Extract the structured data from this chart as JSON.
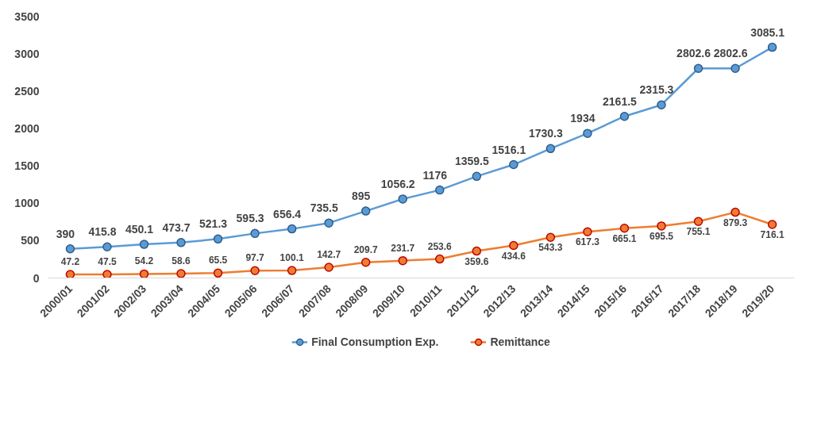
{
  "chart_data": {
    "type": "line",
    "categories": [
      "2000/01",
      "2001/02",
      "2002/03",
      "2003/04",
      "2004/05",
      "2005/06",
      "2006/07",
      "2007/08",
      "2008/09",
      "2009/10",
      "2010/11",
      "2011/12",
      "2012/13",
      "2013/14",
      "2014/15",
      "2015/16",
      "2016/17",
      "2017/18",
      "2018/19",
      "2019/20"
    ],
    "series": [
      {
        "name": "Final Consumption Exp.",
        "color": "#5b9bd5",
        "values": [
          390,
          415.8,
          450.1,
          473.7,
          521.3,
          595.3,
          656.4,
          735.5,
          895,
          1056.2,
          1176,
          1359.5,
          1516.1,
          1730.3,
          1934,
          2161.5,
          2315.3,
          2802.6,
          2802.6,
          3085.1
        ]
      },
      {
        "name": "Remittance",
        "color": "#ed7d31",
        "values": [
          47.2,
          47.5,
          54.2,
          58.6,
          65.5,
          97.7,
          100.1,
          142.7,
          209.7,
          231.7,
          253.6,
          359.6,
          434.6,
          543.3,
          617.3,
          665.1,
          695.5,
          755.1,
          879.3,
          716.1
        ]
      }
    ],
    "ylim": [
      0,
      3500
    ],
    "yticks": [
      0,
      500,
      1000,
      1500,
      2000,
      2500,
      3000,
      3500
    ],
    "grid": false,
    "legend": "bottom",
    "marker": "circle",
    "line_style": "solid",
    "data_labels": true
  }
}
